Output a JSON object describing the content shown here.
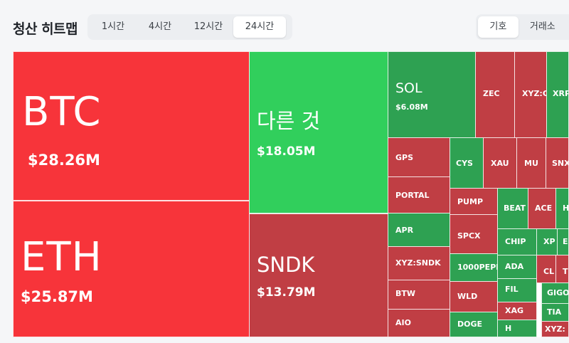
{
  "header": {
    "title": "청산 히트맵",
    "time_tabs": [
      "1시간",
      "4시간",
      "12시간",
      "24시간"
    ],
    "time_active": "24시간",
    "view_tabs": [
      "기호",
      "거래소"
    ],
    "view_active": "기호"
  },
  "heatmap": {
    "big": [
      {
        "symbol": "BTC",
        "value": "$28.26M"
      },
      {
        "symbol": "ETH",
        "value": "$25.87M"
      }
    ],
    "mid": [
      {
        "symbol": "다른 것",
        "value": "$18.05M"
      },
      {
        "symbol": "SNDK",
        "value": "$13.79M"
      }
    ],
    "sol": {
      "symbol": "SOL",
      "value": "$6.08M"
    },
    "small": [
      "ZEC",
      "XYZ:C",
      "XRP",
      "GPS",
      "CYS",
      "XAU",
      "MU",
      "SNX",
      "PORTAL",
      "PUMP",
      "BEAT",
      "ACE",
      "H",
      "APR",
      "SPCX",
      "CHIP",
      "XP",
      "E",
      "XYZ:SNDK",
      "1000PEPE",
      "ADA",
      "CL",
      "T",
      "BTW",
      "WLD",
      "FIL",
      "GIGO",
      "XAG",
      "TIA",
      "AIO",
      "DOGE",
      "H",
      "XYZ:"
    ]
  },
  "colors": {
    "red": "#f7343a",
    "green": "#31cf5c",
    "dark_red": "#c03e44",
    "dark_green": "#2ea152"
  }
}
